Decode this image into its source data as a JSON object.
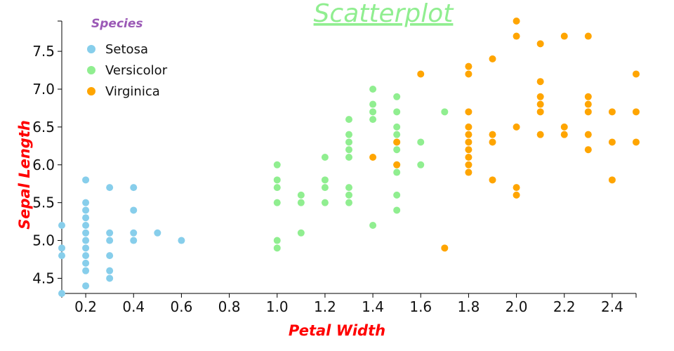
{
  "chart_data": {
    "type": "scatter",
    "title": "Scatterplot",
    "xlabel": "Petal Width",
    "ylabel": "Sepal Length",
    "xlim": [
      0.1,
      2.5
    ],
    "ylim": [
      4.3,
      7.9
    ],
    "x_ticks": [
      "0.2",
      "0.4",
      "0.6",
      "0.8",
      "1.0",
      "1.2",
      "1.4",
      "1.6",
      "1.8",
      "2.0",
      "2.2",
      "2.4"
    ],
    "y_ticks": [
      "4.5",
      "5.0",
      "5.5",
      "6.0",
      "6.5",
      "7.0",
      "7.5"
    ],
    "grid": false,
    "legend": {
      "title": "Species",
      "placement": "top-left"
    },
    "colors": {
      "title": "#90ee90",
      "axis_title": "#ff0000",
      "legend_title": "#9b59b6"
    },
    "series": [
      {
        "name": "Setosa",
        "color": "#87ceeb",
        "points": [
          [
            0.1,
            4.3
          ],
          [
            0.1,
            4.8
          ],
          [
            0.1,
            4.9
          ],
          [
            0.1,
            5.2
          ],
          [
            0.2,
            4.4
          ],
          [
            0.2,
            4.6
          ],
          [
            0.2,
            4.7
          ],
          [
            0.2,
            4.8
          ],
          [
            0.2,
            4.9
          ],
          [
            0.2,
            5.0
          ],
          [
            0.2,
            5.1
          ],
          [
            0.2,
            5.2
          ],
          [
            0.2,
            5.3
          ],
          [
            0.2,
            5.4
          ],
          [
            0.2,
            5.5
          ],
          [
            0.2,
            5.8
          ],
          [
            0.3,
            4.5
          ],
          [
            0.3,
            4.6
          ],
          [
            0.3,
            4.8
          ],
          [
            0.3,
            5.0
          ],
          [
            0.3,
            5.1
          ],
          [
            0.3,
            5.7
          ],
          [
            0.4,
            5.0
          ],
          [
            0.4,
            5.1
          ],
          [
            0.4,
            5.4
          ],
          [
            0.4,
            5.7
          ],
          [
            0.5,
            5.1
          ],
          [
            0.6,
            5.0
          ]
        ]
      },
      {
        "name": "Versicolor",
        "color": "#90ee90",
        "points": [
          [
            1.0,
            4.9
          ],
          [
            1.0,
            5.0
          ],
          [
            1.0,
            5.5
          ],
          [
            1.0,
            5.7
          ],
          [
            1.0,
            5.8
          ],
          [
            1.0,
            6.0
          ],
          [
            1.1,
            5.1
          ],
          [
            1.1,
            5.5
          ],
          [
            1.1,
            5.6
          ],
          [
            1.2,
            5.5
          ],
          [
            1.2,
            5.7
          ],
          [
            1.2,
            5.8
          ],
          [
            1.2,
            6.1
          ],
          [
            1.3,
            5.5
          ],
          [
            1.3,
            5.6
          ],
          [
            1.3,
            5.7
          ],
          [
            1.3,
            6.1
          ],
          [
            1.3,
            6.2
          ],
          [
            1.3,
            6.3
          ],
          [
            1.3,
            6.4
          ],
          [
            1.3,
            6.6
          ],
          [
            1.4,
            5.2
          ],
          [
            1.4,
            6.6
          ],
          [
            1.4,
            6.7
          ],
          [
            1.4,
            6.8
          ],
          [
            1.4,
            7.0
          ],
          [
            1.5,
            5.4
          ],
          [
            1.5,
            5.6
          ],
          [
            1.5,
            5.9
          ],
          [
            1.5,
            6.0
          ],
          [
            1.5,
            6.2
          ],
          [
            1.5,
            6.3
          ],
          [
            1.5,
            6.4
          ],
          [
            1.5,
            6.5
          ],
          [
            1.5,
            6.7
          ],
          [
            1.5,
            6.9
          ],
          [
            1.6,
            6.0
          ],
          [
            1.6,
            6.3
          ],
          [
            1.7,
            6.7
          ]
        ]
      },
      {
        "name": "Virginica",
        "color": "#ffa500",
        "points": [
          [
            1.4,
            6.1
          ],
          [
            1.5,
            6.0
          ],
          [
            1.5,
            6.3
          ],
          [
            1.6,
            7.2
          ],
          [
            1.7,
            4.9
          ],
          [
            1.8,
            5.9
          ],
          [
            1.8,
            6.0
          ],
          [
            1.8,
            6.1
          ],
          [
            1.8,
            6.2
          ],
          [
            1.8,
            6.3
          ],
          [
            1.8,
            6.4
          ],
          [
            1.8,
            6.5
          ],
          [
            1.8,
            6.7
          ],
          [
            1.8,
            7.2
          ],
          [
            1.8,
            7.3
          ],
          [
            1.9,
            5.8
          ],
          [
            1.9,
            6.3
          ],
          [
            1.9,
            6.4
          ],
          [
            1.9,
            7.4
          ],
          [
            2.0,
            5.6
          ],
          [
            2.0,
            5.7
          ],
          [
            2.0,
            6.5
          ],
          [
            2.0,
            7.7
          ],
          [
            2.0,
            7.9
          ],
          [
            2.1,
            6.4
          ],
          [
            2.1,
            6.7
          ],
          [
            2.1,
            6.8
          ],
          [
            2.1,
            6.9
          ],
          [
            2.1,
            7.1
          ],
          [
            2.1,
            7.6
          ],
          [
            2.2,
            6.4
          ],
          [
            2.2,
            6.5
          ],
          [
            2.2,
            7.7
          ],
          [
            2.3,
            6.2
          ],
          [
            2.3,
            6.4
          ],
          [
            2.3,
            6.7
          ],
          [
            2.3,
            6.8
          ],
          [
            2.3,
            6.9
          ],
          [
            2.3,
            7.7
          ],
          [
            2.4,
            5.8
          ],
          [
            2.4,
            6.3
          ],
          [
            2.4,
            6.7
          ],
          [
            2.5,
            6.3
          ],
          [
            2.5,
            6.7
          ],
          [
            2.5,
            7.2
          ]
        ]
      }
    ]
  }
}
